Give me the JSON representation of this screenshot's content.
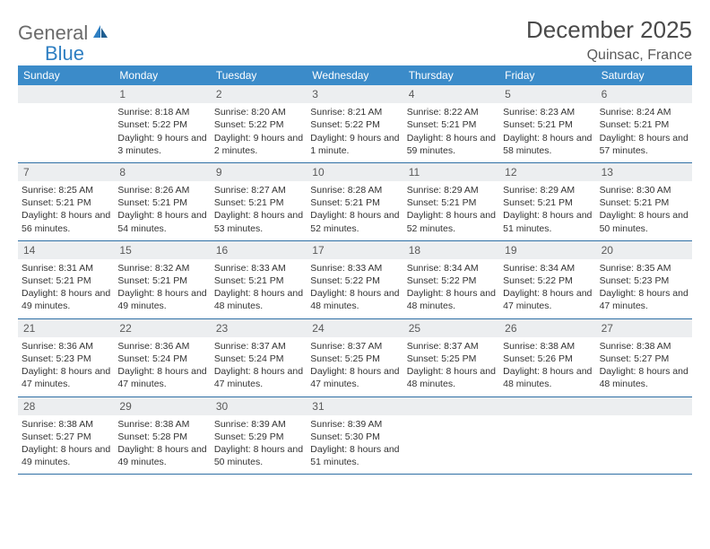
{
  "brand": {
    "part1": "General",
    "part2": "Blue"
  },
  "title": "December 2025",
  "subtitle": "Quinsac, France",
  "colors": {
    "header_bg": "#3b8bc9",
    "header_text": "#ffffff",
    "daynum_bg": "#eceef0",
    "rule": "#2f6fa5",
    "title_color": "#4a4a4a",
    "logo_gray": "#6b6b6b",
    "logo_blue": "#2f7fc2"
  },
  "dow": [
    "Sunday",
    "Monday",
    "Tuesday",
    "Wednesday",
    "Thursday",
    "Friday",
    "Saturday"
  ],
  "weeks": [
    [
      {
        "n": "",
        "sr": "",
        "ss": "",
        "dl": ""
      },
      {
        "n": "1",
        "sr": "Sunrise: 8:18 AM",
        "ss": "Sunset: 5:22 PM",
        "dl": "Daylight: 9 hours and 3 minutes."
      },
      {
        "n": "2",
        "sr": "Sunrise: 8:20 AM",
        "ss": "Sunset: 5:22 PM",
        "dl": "Daylight: 9 hours and 2 minutes."
      },
      {
        "n": "3",
        "sr": "Sunrise: 8:21 AM",
        "ss": "Sunset: 5:22 PM",
        "dl": "Daylight: 9 hours and 1 minute."
      },
      {
        "n": "4",
        "sr": "Sunrise: 8:22 AM",
        "ss": "Sunset: 5:21 PM",
        "dl": "Daylight: 8 hours and 59 minutes."
      },
      {
        "n": "5",
        "sr": "Sunrise: 8:23 AM",
        "ss": "Sunset: 5:21 PM",
        "dl": "Daylight: 8 hours and 58 minutes."
      },
      {
        "n": "6",
        "sr": "Sunrise: 8:24 AM",
        "ss": "Sunset: 5:21 PM",
        "dl": "Daylight: 8 hours and 57 minutes."
      }
    ],
    [
      {
        "n": "7",
        "sr": "Sunrise: 8:25 AM",
        "ss": "Sunset: 5:21 PM",
        "dl": "Daylight: 8 hours and 56 minutes."
      },
      {
        "n": "8",
        "sr": "Sunrise: 8:26 AM",
        "ss": "Sunset: 5:21 PM",
        "dl": "Daylight: 8 hours and 54 minutes."
      },
      {
        "n": "9",
        "sr": "Sunrise: 8:27 AM",
        "ss": "Sunset: 5:21 PM",
        "dl": "Daylight: 8 hours and 53 minutes."
      },
      {
        "n": "10",
        "sr": "Sunrise: 8:28 AM",
        "ss": "Sunset: 5:21 PM",
        "dl": "Daylight: 8 hours and 52 minutes."
      },
      {
        "n": "11",
        "sr": "Sunrise: 8:29 AM",
        "ss": "Sunset: 5:21 PM",
        "dl": "Daylight: 8 hours and 52 minutes."
      },
      {
        "n": "12",
        "sr": "Sunrise: 8:29 AM",
        "ss": "Sunset: 5:21 PM",
        "dl": "Daylight: 8 hours and 51 minutes."
      },
      {
        "n": "13",
        "sr": "Sunrise: 8:30 AM",
        "ss": "Sunset: 5:21 PM",
        "dl": "Daylight: 8 hours and 50 minutes."
      }
    ],
    [
      {
        "n": "14",
        "sr": "Sunrise: 8:31 AM",
        "ss": "Sunset: 5:21 PM",
        "dl": "Daylight: 8 hours and 49 minutes."
      },
      {
        "n": "15",
        "sr": "Sunrise: 8:32 AM",
        "ss": "Sunset: 5:21 PM",
        "dl": "Daylight: 8 hours and 49 minutes."
      },
      {
        "n": "16",
        "sr": "Sunrise: 8:33 AM",
        "ss": "Sunset: 5:21 PM",
        "dl": "Daylight: 8 hours and 48 minutes."
      },
      {
        "n": "17",
        "sr": "Sunrise: 8:33 AM",
        "ss": "Sunset: 5:22 PM",
        "dl": "Daylight: 8 hours and 48 minutes."
      },
      {
        "n": "18",
        "sr": "Sunrise: 8:34 AM",
        "ss": "Sunset: 5:22 PM",
        "dl": "Daylight: 8 hours and 48 minutes."
      },
      {
        "n": "19",
        "sr": "Sunrise: 8:34 AM",
        "ss": "Sunset: 5:22 PM",
        "dl": "Daylight: 8 hours and 47 minutes."
      },
      {
        "n": "20",
        "sr": "Sunrise: 8:35 AM",
        "ss": "Sunset: 5:23 PM",
        "dl": "Daylight: 8 hours and 47 minutes."
      }
    ],
    [
      {
        "n": "21",
        "sr": "Sunrise: 8:36 AM",
        "ss": "Sunset: 5:23 PM",
        "dl": "Daylight: 8 hours and 47 minutes."
      },
      {
        "n": "22",
        "sr": "Sunrise: 8:36 AM",
        "ss": "Sunset: 5:24 PM",
        "dl": "Daylight: 8 hours and 47 minutes."
      },
      {
        "n": "23",
        "sr": "Sunrise: 8:37 AM",
        "ss": "Sunset: 5:24 PM",
        "dl": "Daylight: 8 hours and 47 minutes."
      },
      {
        "n": "24",
        "sr": "Sunrise: 8:37 AM",
        "ss": "Sunset: 5:25 PM",
        "dl": "Daylight: 8 hours and 47 minutes."
      },
      {
        "n": "25",
        "sr": "Sunrise: 8:37 AM",
        "ss": "Sunset: 5:25 PM",
        "dl": "Daylight: 8 hours and 48 minutes."
      },
      {
        "n": "26",
        "sr": "Sunrise: 8:38 AM",
        "ss": "Sunset: 5:26 PM",
        "dl": "Daylight: 8 hours and 48 minutes."
      },
      {
        "n": "27",
        "sr": "Sunrise: 8:38 AM",
        "ss": "Sunset: 5:27 PM",
        "dl": "Daylight: 8 hours and 48 minutes."
      }
    ],
    [
      {
        "n": "28",
        "sr": "Sunrise: 8:38 AM",
        "ss": "Sunset: 5:27 PM",
        "dl": "Daylight: 8 hours and 49 minutes."
      },
      {
        "n": "29",
        "sr": "Sunrise: 8:38 AM",
        "ss": "Sunset: 5:28 PM",
        "dl": "Daylight: 8 hours and 49 minutes."
      },
      {
        "n": "30",
        "sr": "Sunrise: 8:39 AM",
        "ss": "Sunset: 5:29 PM",
        "dl": "Daylight: 8 hours and 50 minutes."
      },
      {
        "n": "31",
        "sr": "Sunrise: 8:39 AM",
        "ss": "Sunset: 5:30 PM",
        "dl": "Daylight: 8 hours and 51 minutes."
      },
      {
        "n": "",
        "sr": "",
        "ss": "",
        "dl": ""
      },
      {
        "n": "",
        "sr": "",
        "ss": "",
        "dl": ""
      },
      {
        "n": "",
        "sr": "",
        "ss": "",
        "dl": ""
      }
    ]
  ]
}
